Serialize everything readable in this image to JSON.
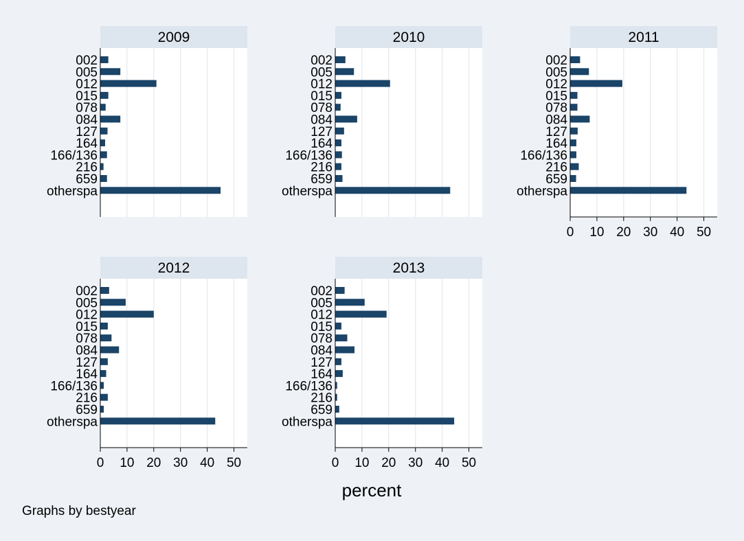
{
  "figure": {
    "xlabel": "percent",
    "note": "Graphs by bestyear",
    "colors": {
      "background": "#eef2f7",
      "plot": "#ffffff",
      "header": "#dde5ee",
      "bar": "#1a4468",
      "grid": "#e3e8ef",
      "axis": "#000000"
    }
  },
  "chart_data": [
    {
      "type": "bar",
      "orientation": "horizontal",
      "title": "2009",
      "categories": [
        "002",
        "005",
        "012",
        "015",
        "078",
        "084",
        "127",
        "164",
        "166/136",
        "216",
        "659",
        "otherspa"
      ],
      "values": [
        3.0,
        7.5,
        21.0,
        3.0,
        2.0,
        7.5,
        2.7,
        1.8,
        2.5,
        1.2,
        2.5,
        45.0
      ],
      "xlim": [
        0,
        55
      ],
      "xticks": [
        0,
        10,
        20,
        30,
        40,
        50
      ],
      "show_xticks": false,
      "grid": true
    },
    {
      "type": "bar",
      "orientation": "horizontal",
      "title": "2010",
      "categories": [
        "002",
        "005",
        "012",
        "015",
        "078",
        "084",
        "127",
        "164",
        "166/136",
        "216",
        "659",
        "otherspa"
      ],
      "values": [
        3.8,
        7.0,
        20.5,
        2.3,
        2.0,
        8.2,
        3.3,
        2.3,
        2.5,
        2.3,
        2.7,
        43.0
      ],
      "xlim": [
        0,
        55
      ],
      "xticks": [
        0,
        10,
        20,
        30,
        40,
        50
      ],
      "show_xticks": false,
      "grid": true
    },
    {
      "type": "bar",
      "orientation": "horizontal",
      "title": "2011",
      "categories": [
        "002",
        "005",
        "012",
        "015",
        "078",
        "084",
        "127",
        "164",
        "166/136",
        "216",
        "659",
        "otherspa"
      ],
      "values": [
        3.7,
        7.0,
        19.5,
        2.7,
        2.7,
        7.3,
        2.8,
        2.3,
        2.3,
        3.2,
        2.2,
        43.5
      ],
      "xlim": [
        0,
        55
      ],
      "xticks": [
        0,
        10,
        20,
        30,
        40,
        50
      ],
      "show_xticks": true,
      "grid": true
    },
    {
      "type": "bar",
      "orientation": "horizontal",
      "title": "2012",
      "categories": [
        "002",
        "005",
        "012",
        "015",
        "078",
        "084",
        "127",
        "164",
        "166/136",
        "216",
        "659",
        "otherspa"
      ],
      "values": [
        3.3,
        9.5,
        20.0,
        2.8,
        4.2,
        7.0,
        2.8,
        2.2,
        1.3,
        2.8,
        1.3,
        43.0
      ],
      "xlim": [
        0,
        55
      ],
      "xticks": [
        0,
        10,
        20,
        30,
        40,
        50
      ],
      "show_xticks": true,
      "grid": true
    },
    {
      "type": "bar",
      "orientation": "horizontal",
      "title": "2013",
      "categories": [
        "002",
        "005",
        "012",
        "015",
        "078",
        "084",
        "127",
        "164",
        "166/136",
        "216",
        "659",
        "otherspa"
      ],
      "values": [
        3.5,
        11.0,
        19.2,
        2.3,
        4.5,
        7.2,
        2.3,
        2.8,
        0.7,
        0.7,
        1.5,
        44.5
      ],
      "xlim": [
        0,
        55
      ],
      "xticks": [
        0,
        10,
        20,
        30,
        40,
        50
      ],
      "show_xticks": true,
      "grid": true
    }
  ]
}
